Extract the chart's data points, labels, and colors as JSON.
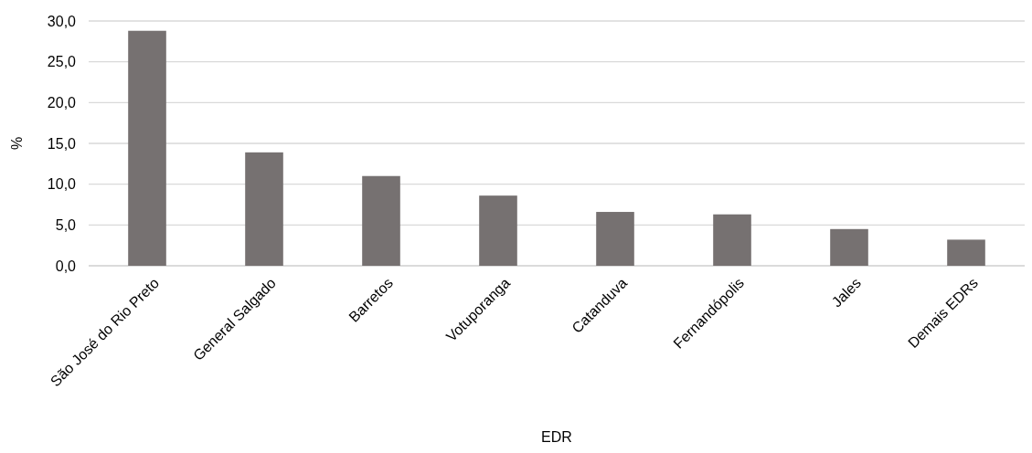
{
  "chart_data": {
    "type": "bar",
    "xlabel": "EDR",
    "ylabel": "%",
    "categories": [
      "São José do Rio Preto",
      "General Salgado",
      "Barretos",
      "Votuporanga",
      "Catanduva",
      "Fernandópolis",
      "Jales",
      "Demais EDRs"
    ],
    "values": [
      28.8,
      13.9,
      11.0,
      8.6,
      6.6,
      6.3,
      4.5,
      3.2
    ],
    "color": "#767171",
    "ylim": [
      0,
      30
    ],
    "yticks": [
      {
        "value": 0,
        "label": "0,0"
      },
      {
        "value": 5,
        "label": "5,0"
      },
      {
        "value": 10,
        "label": "10,0"
      },
      {
        "value": 15,
        "label": "15,0"
      },
      {
        "value": 20,
        "label": "20,0"
      },
      {
        "value": 25,
        "label": "25,0"
      },
      {
        "value": 30,
        "label": "30,0"
      }
    ],
    "grid": "y"
  }
}
